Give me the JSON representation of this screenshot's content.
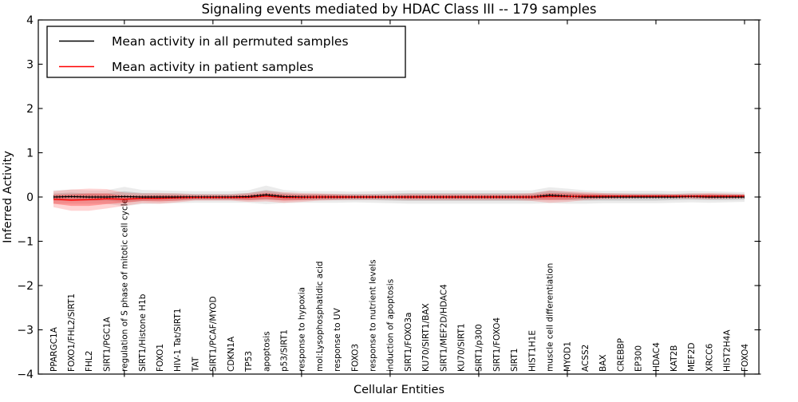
{
  "chart_data": {
    "type": "line",
    "title": "Signaling events mediated by HDAC Class III -- 179 samples",
    "xlabel": "Cellular Entities",
    "ylabel": "Inferred Activity",
    "ylim": [
      -4,
      4
    ],
    "yticks": [
      -4,
      -3,
      -2,
      -1,
      0,
      1,
      2,
      3,
      4
    ],
    "ytick_labels": [
      "−4",
      "−3",
      "−2",
      "−1",
      "0",
      "1",
      "2",
      "3",
      "4"
    ],
    "x_major_tick_every": 5,
    "grid": false,
    "legend_position": "upper left",
    "categories": [
      "PPARGC1A",
      "FOXO1/FHL2/SIRT1",
      "FHL2",
      "SIRT1/PGC1A",
      "regulation of S phase of mitotic cell cycle",
      "SIRT1/Histone H1b",
      "FOXO1",
      "HIV-1 Tat/SIRT1",
      "TAT",
      "SIRT1/PCAF/MYOD",
      "CDKN1A",
      "TP53",
      "apoptosis",
      "p53/SIRT1",
      "response to hypoxia",
      "mol:Lysophosphatidic acid",
      "response to UV",
      "FOXO3",
      "response to nutrient levels",
      "induction of apoptosis",
      "SIRT1/FOXO3a",
      "KU70/SIRT1/BAX",
      "SIRT1/MEF2D/HDAC4",
      "KU70/SIRT1",
      "SIRT1/p300",
      "SIRT1/FOXO4",
      "SIRT1",
      "HIST1H1E",
      "muscle cell differentiation",
      "MYOD1",
      "ACSS2",
      "BAX",
      "CREBBP",
      "EP300",
      "HDAC4",
      "KAT2B",
      "MEF2D",
      "XRCC6",
      "HIST2H4A",
      "FOXO4"
    ],
    "series": [
      {
        "name": "Mean activity in all permuted samples",
        "color": "#000000",
        "mean": [
          0.0,
          0.01,
          0.0,
          0.0,
          0.01,
          0.0,
          0.0,
          0.0,
          0.0,
          0.0,
          0.0,
          0.01,
          0.05,
          0.01,
          0.0,
          0.0,
          0.0,
          0.0,
          0.0,
          0.0,
          0.0,
          0.0,
          0.0,
          0.0,
          0.0,
          0.0,
          0.0,
          0.0,
          0.04,
          0.02,
          0.0,
          0.0,
          0.0,
          0.0,
          0.0,
          0.0,
          0.01,
          0.0,
          0.0,
          0.0
        ],
        "band_outer": [
          0.15,
          0.16,
          0.15,
          0.15,
          0.22,
          0.16,
          0.15,
          0.14,
          0.13,
          0.13,
          0.13,
          0.14,
          0.21,
          0.15,
          0.13,
          0.13,
          0.13,
          0.12,
          0.13,
          0.14,
          0.15,
          0.15,
          0.15,
          0.15,
          0.15,
          0.15,
          0.15,
          0.15,
          0.18,
          0.17,
          0.15,
          0.14,
          0.14,
          0.14,
          0.14,
          0.13,
          0.13,
          0.13,
          0.12,
          0.11
        ],
        "band_inner": [
          0.08,
          0.09,
          0.08,
          0.08,
          0.12,
          0.09,
          0.08,
          0.08,
          0.07,
          0.07,
          0.07,
          0.08,
          0.11,
          0.08,
          0.07,
          0.07,
          0.07,
          0.07,
          0.07,
          0.08,
          0.09,
          0.09,
          0.09,
          0.09,
          0.09,
          0.09,
          0.09,
          0.08,
          0.1,
          0.09,
          0.08,
          0.08,
          0.08,
          0.08,
          0.08,
          0.07,
          0.07,
          0.07,
          0.07,
          0.06
        ]
      },
      {
        "name": "Mean activity in patient samples",
        "color": "#ff0000",
        "mean": [
          -0.05,
          -0.07,
          -0.06,
          -0.04,
          -0.05,
          -0.03,
          -0.03,
          -0.02,
          -0.01,
          -0.01,
          -0.01,
          -0.01,
          0.02,
          -0.01,
          -0.01,
          0.0,
          0.0,
          0.0,
          0.0,
          0.0,
          0.0,
          0.0,
          0.0,
          0.0,
          0.0,
          0.0,
          0.0,
          0.0,
          0.01,
          0.01,
          0.02,
          0.02,
          0.02,
          0.02,
          0.02,
          0.02,
          0.02,
          0.02,
          0.02,
          0.02
        ],
        "band_outer": [
          0.18,
          0.24,
          0.25,
          0.22,
          0.15,
          0.11,
          0.12,
          0.1,
          0.07,
          0.07,
          0.07,
          0.1,
          0.12,
          0.12,
          0.1,
          0.08,
          0.07,
          0.06,
          0.06,
          0.06,
          0.07,
          0.07,
          0.07,
          0.07,
          0.07,
          0.07,
          0.07,
          0.09,
          0.14,
          0.12,
          0.09,
          0.07,
          0.06,
          0.05,
          0.05,
          0.05,
          0.06,
          0.07,
          0.06,
          0.05
        ],
        "band_inner": [
          0.1,
          0.13,
          0.14,
          0.12,
          0.08,
          0.06,
          0.07,
          0.06,
          0.04,
          0.04,
          0.04,
          0.06,
          0.07,
          0.07,
          0.06,
          0.05,
          0.04,
          0.03,
          0.03,
          0.03,
          0.04,
          0.04,
          0.04,
          0.04,
          0.04,
          0.04,
          0.04,
          0.05,
          0.08,
          0.07,
          0.05,
          0.04,
          0.03,
          0.03,
          0.03,
          0.03,
          0.03,
          0.04,
          0.03,
          0.03
        ]
      }
    ]
  }
}
